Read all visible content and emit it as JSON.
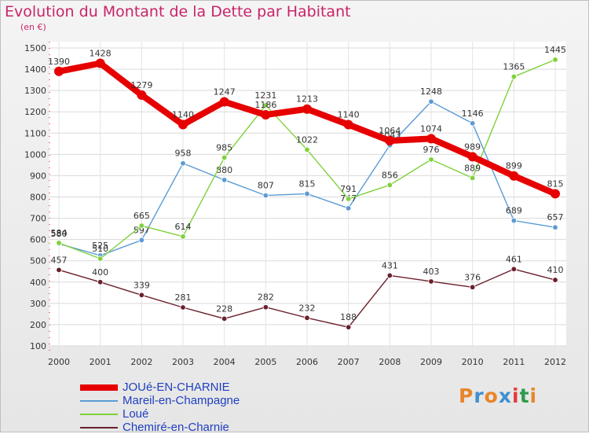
{
  "header": {
    "title": "Evolution du Montant de la Dette par Habitant",
    "subtitle": "(en €)"
  },
  "logo": {
    "letters": [
      "P",
      "r",
      "o",
      "x",
      "i",
      "t",
      "i"
    ],
    "colors": [
      "#e8862a",
      "#3f8fd1",
      "#e8862a",
      "#3f8fd1",
      "#e23c3c",
      "#2f9a4a",
      "#e8862a"
    ]
  },
  "chart_data": {
    "type": "line",
    "title": "Evolution du Montant de la Dette par Habitant",
    "ylabel": "(en €)",
    "x": [
      "2000",
      "2001",
      "2002",
      "2003",
      "2004",
      "2005",
      "2006",
      "2007",
      "2008",
      "2009",
      "2010",
      "2011",
      "2012"
    ],
    "ylim": [
      100,
      1500
    ],
    "yticks": [
      100,
      200,
      300,
      400,
      500,
      600,
      700,
      800,
      900,
      1000,
      1100,
      1200,
      1300,
      1400,
      1500
    ],
    "grid": true,
    "legend_position": "bottom-left",
    "series": [
      {
        "name": "JOUé-EN-CHARNIE",
        "color": "#e60000",
        "bold": true,
        "values": [
          1390,
          1428,
          1279,
          1140,
          1247,
          1186,
          1213,
          1140,
          1064,
          1074,
          989,
          899,
          815
        ]
      },
      {
        "name": "Mareil-en-Champagne",
        "color": "#5b9bd5",
        "bold": false,
        "values": [
          580,
          525,
          597,
          958,
          880,
          807,
          815,
          747,
          1043,
          1248,
          1146,
          689,
          657
        ]
      },
      {
        "name": "Loué",
        "color": "#7fd13b",
        "bold": false,
        "values": [
          584,
          510,
          665,
          614,
          985,
          1231,
          1022,
          791,
          856,
          976,
          889,
          1365,
          1445
        ]
      },
      {
        "name": "Chemiré-en-Charnie",
        "color": "#6b1f2a",
        "bold": false,
        "values": [
          457,
          400,
          339,
          281,
          228,
          282,
          232,
          188,
          431,
          403,
          376,
          461,
          410
        ]
      }
    ]
  }
}
